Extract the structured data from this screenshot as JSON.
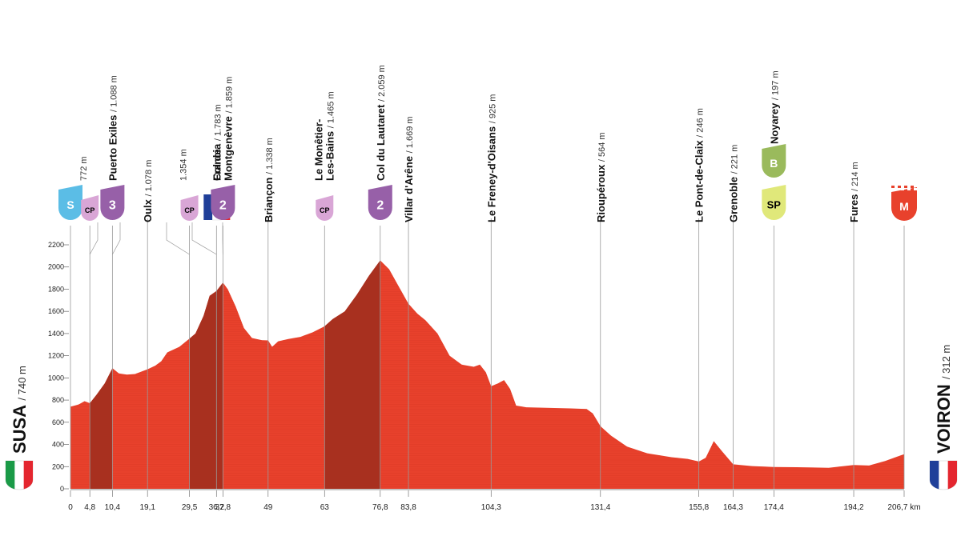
{
  "chart_data": {
    "type": "area",
    "title": "",
    "xlabel": "",
    "ylabel": "",
    "x_unit": "km",
    "xlim": [
      0,
      206.7
    ],
    "ylim": [
      0,
      2200
    ],
    "y_ticks": [
      0,
      200,
      400,
      600,
      800,
      1000,
      1200,
      1400,
      1600,
      1800,
      2000,
      2200
    ],
    "km_ticks": [
      {
        "label": "0",
        "value": 0
      },
      {
        "label": "4,8",
        "value": 4.8
      },
      {
        "label": "10,4",
        "value": 10.4
      },
      {
        "label": "19,1",
        "value": 19.1
      },
      {
        "label": "29,5",
        "value": 29.5
      },
      {
        "label": "36,2",
        "value": 36.2
      },
      {
        "label": "37,8",
        "value": 37.8
      },
      {
        "label": "49",
        "value": 49
      },
      {
        "label": "63",
        "value": 63
      },
      {
        "label": "76,8",
        "value": 76.8
      },
      {
        "label": "83,8",
        "value": 83.8
      },
      {
        "label": "104,3",
        "value": 104.3
      },
      {
        "label": "131,4",
        "value": 131.4
      },
      {
        "label": "155,8",
        "value": 155.8
      },
      {
        "label": "164,3",
        "value": 164.3
      },
      {
        "label": "174,4",
        "value": 174.4
      },
      {
        "label": "194,2",
        "value": 194.2
      },
      {
        "label": "206,7 km",
        "value": 206.7
      }
    ],
    "profile": [
      [
        0,
        740
      ],
      [
        2,
        760
      ],
      [
        3.5,
        790
      ],
      [
        4.8,
        772
      ],
      [
        6.5,
        850
      ],
      [
        8.5,
        950
      ],
      [
        10.4,
        1088
      ],
      [
        12,
        1040
      ],
      [
        14,
        1030
      ],
      [
        16,
        1035
      ],
      [
        19.1,
        1078
      ],
      [
        21,
        1110
      ],
      [
        22.5,
        1150
      ],
      [
        24,
        1230
      ],
      [
        27,
        1280
      ],
      [
        29.5,
        1354
      ],
      [
        31,
        1400
      ],
      [
        33,
        1560
      ],
      [
        34.5,
        1740
      ],
      [
        36.2,
        1783
      ],
      [
        37.8,
        1859
      ],
      [
        39,
        1800
      ],
      [
        41,
        1640
      ],
      [
        43,
        1450
      ],
      [
        45,
        1360
      ],
      [
        47.5,
        1340
      ],
      [
        49,
        1338
      ],
      [
        50,
        1280
      ],
      [
        51.5,
        1330
      ],
      [
        54,
        1350
      ],
      [
        57,
        1370
      ],
      [
        60,
        1410
      ],
      [
        63,
        1465
      ],
      [
        65,
        1530
      ],
      [
        68,
        1600
      ],
      [
        71,
        1750
      ],
      [
        74,
        1920
      ],
      [
        76.8,
        2059
      ],
      [
        79,
        1980
      ],
      [
        81,
        1850
      ],
      [
        83.8,
        1669
      ],
      [
        86,
        1580
      ],
      [
        88,
        1520
      ],
      [
        91,
        1400
      ],
      [
        94,
        1200
      ],
      [
        97,
        1120
      ],
      [
        100,
        1100
      ],
      [
        101.5,
        1120
      ],
      [
        103,
        1050
      ],
      [
        104.3,
        925
      ],
      [
        106,
        950
      ],
      [
        107.5,
        980
      ],
      [
        109,
        900
      ],
      [
        110.5,
        750
      ],
      [
        113,
        735
      ],
      [
        118,
        730
      ],
      [
        124,
        725
      ],
      [
        128,
        720
      ],
      [
        129.5,
        680
      ],
      [
        131.4,
        564
      ],
      [
        134,
        480
      ],
      [
        138,
        380
      ],
      [
        143,
        320
      ],
      [
        149,
        285
      ],
      [
        153,
        270
      ],
      [
        155.8,
        246
      ],
      [
        157.5,
        280
      ],
      [
        159.5,
        430
      ],
      [
        161.5,
        340
      ],
      [
        164.3,
        221
      ],
      [
        169,
        205
      ],
      [
        174.4,
        197
      ],
      [
        180,
        195
      ],
      [
        188,
        190
      ],
      [
        194.2,
        214
      ],
      [
        198,
        210
      ],
      [
        202,
        250
      ],
      [
        205,
        290
      ],
      [
        206.7,
        312
      ]
    ],
    "dark_sections": [
      [
        4.8,
        10.4
      ],
      [
        29.5,
        37.8
      ],
      [
        63,
        76.8
      ]
    ],
    "waypoints": [
      {
        "km": 0,
        "name": "",
        "alt": "",
        "marker": "S"
      },
      {
        "km": 4.8,
        "name": "",
        "alt": "772 m",
        "marker": "CP"
      },
      {
        "km": 10.4,
        "name": "Puerto Exiles",
        "alt": "/ 1.088 m",
        "marker": "3"
      },
      {
        "km": 19.1,
        "name": "Oulx",
        "alt": "/ 1.078 m",
        "marker": ""
      },
      {
        "km": 29.5,
        "name": "",
        "alt": "1.354 m",
        "marker": "CP"
      },
      {
        "km": 36.2,
        "name": "Francia",
        "alt": "/ 1.783 m",
        "marker": "flag-fr"
      },
      {
        "km": 37.8,
        "name": "Col de",
        "name2": "Montgenèvre",
        "alt": "/ 1.859 m",
        "marker": "2"
      },
      {
        "km": 49,
        "name": "Briançon",
        "alt": "/ 1.338 m",
        "marker": ""
      },
      {
        "km": 63,
        "name": "Le Monêtier-",
        "name2": "Les-Bains",
        "alt": "/ 1.465 m",
        "marker": "CP"
      },
      {
        "km": 76.8,
        "name": "Col du Lautaret",
        "alt": "/ 2.059 m",
        "marker": "2"
      },
      {
        "km": 83.8,
        "name": "Villar d'Arêne",
        "alt": "/ 1.669 m",
        "marker": ""
      },
      {
        "km": 104.3,
        "name": "Le Freney-d'Oisans",
        "alt": "/ 925 m",
        "marker": ""
      },
      {
        "km": 131.4,
        "name": "Rioupéroux",
        "alt": "/ 564 m",
        "marker": ""
      },
      {
        "km": 155.8,
        "name": "Le Pont-de-Claix",
        "alt": "/ 246 m",
        "marker": ""
      },
      {
        "km": 164.3,
        "name": "Grenoble",
        "alt": "/ 221 m",
        "marker": ""
      },
      {
        "km": 174.4,
        "name": "Noyarey",
        "alt": "/ 197 m",
        "marker": "SP",
        "marker2": "B"
      },
      {
        "km": 194.2,
        "name": "Fures",
        "alt": "/ 214 m",
        "marker": ""
      },
      {
        "km": 206.7,
        "name": "",
        "alt": "",
        "marker": "M"
      }
    ],
    "start": {
      "name": "SUSA",
      "alt": "/ 740 m"
    },
    "finish": {
      "name": "VOIRON",
      "alt": "/ 312 m"
    }
  },
  "colors": {
    "profile": "#e8412c",
    "profile_dark": "#a8301f",
    "start_marker": "#5bbde6",
    "climb_marker": "#9760a8",
    "cp_marker": "#d9a6d6",
    "sprint_marker": "#e0e87a",
    "bonus_marker": "#9aba5c",
    "finish_marker": "#e8412c"
  }
}
